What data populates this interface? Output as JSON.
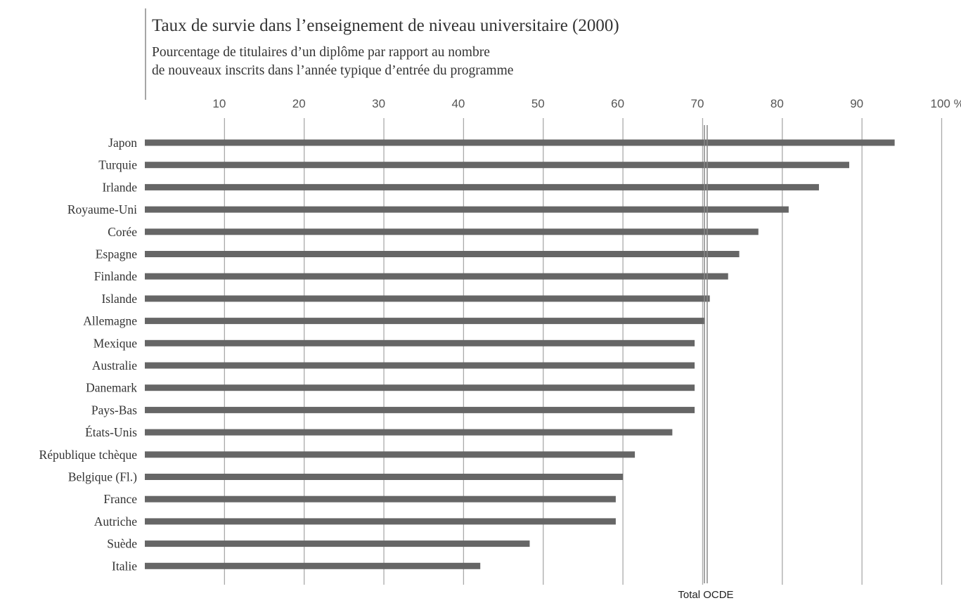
{
  "chart_data": {
    "type": "bar",
    "orientation": "horizontal",
    "title": "Taux de survie dans l’enseignement de niveau universitaire (2000)",
    "subtitle": [
      "Pourcentage de titulaires d’un diplôme par rapport au nombre",
      "de nouveaux inscrits dans l’année typique d’entrée du programme"
    ],
    "categories": [
      "Japon",
      "Turquie",
      "Irlande",
      "Royaume-Uni",
      "Corée",
      "Espagne",
      "Finlande",
      "Islande",
      "Allemagne",
      "Mexique",
      "Australie",
      "Danemark",
      "Pays-Bas",
      "États-Unis",
      "République tchèque",
      "Belgique (Fl.)",
      "France",
      "Autriche",
      "Suède",
      "Italie"
    ],
    "values": [
      94.1,
      88.4,
      84.6,
      80.8,
      77.0,
      74.6,
      73.2,
      70.9,
      70.3,
      69.0,
      69.0,
      69.0,
      69.0,
      66.2,
      61.5,
      60.0,
      59.1,
      59.1,
      48.3,
      42.1
    ],
    "color": "#666666",
    "xlim": [
      0,
      100
    ],
    "xticks": [
      10,
      20,
      30,
      40,
      50,
      60,
      70,
      80,
      90,
      {
        "value": 100,
        "label": "100 %"
      }
    ],
    "grid": true,
    "reference_line": {
      "label": "Total OCDE",
      "value": 70.4
    }
  }
}
